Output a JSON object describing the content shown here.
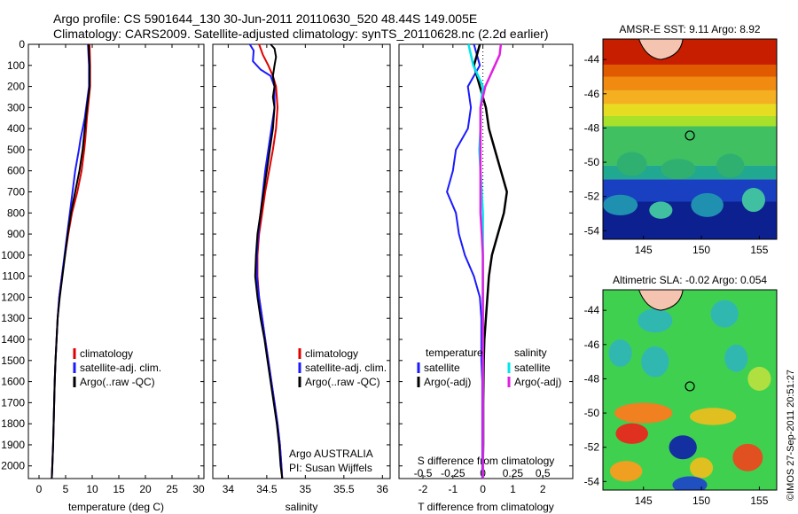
{
  "header": {
    "line1": "Argo profile: CS 5901644_130 30-Jun-2011 20110630_520 48.44S 149.005E",
    "line2": "Climatology: CARS2009. Satellite-adjusted climatology: synTS_20110628.nc (2.2d earlier)"
  },
  "colors": {
    "climatology": "#e00000",
    "satellite": "#1a1aff",
    "argo": "#000000",
    "salinity_sat": "#00e5ee",
    "salinity_argo": "#e020e0"
  },
  "watermark": "©IMOS 27-Sep-2011 20:51:27",
  "chart_data": [
    {
      "type": "line",
      "xlabel": "temperature (deg C)",
      "ylabel": "",
      "xlim": [
        -2,
        31
      ],
      "ylim": [
        2060,
        0
      ],
      "xticks": [
        "0",
        "5",
        "10",
        "15",
        "20",
        "25",
        "30"
      ],
      "yticks": [
        "0",
        "100",
        "200",
        "300",
        "400",
        "500",
        "600",
        "700",
        "800",
        "900",
        "1000",
        "1100",
        "1200",
        "1300",
        "1400",
        "1500",
        "1600",
        "1700",
        "1800",
        "1900",
        "2000"
      ],
      "legend": [
        "climatology",
        "satellite-adj. clim.",
        "Argo(..raw -QC)"
      ],
      "series": [
        {
          "name": "climatology",
          "points": [
            [
              9.5,
              0
            ],
            [
              9.6,
              100
            ],
            [
              9.6,
              200
            ],
            [
              9.0,
              350
            ],
            [
              8.7,
              450
            ],
            [
              8.5,
              500
            ],
            [
              8.0,
              600
            ],
            [
              7.2,
              700
            ],
            [
              6.2,
              800
            ],
            [
              5.5,
              900
            ],
            [
              4.9,
              1000
            ],
            [
              4.3,
              1100
            ],
            [
              3.8,
              1200
            ],
            [
              3.5,
              1300
            ],
            [
              3.3,
              1400
            ],
            [
              3.1,
              1500
            ],
            [
              2.95,
              1600
            ],
            [
              2.85,
              1700
            ],
            [
              2.75,
              1800
            ],
            [
              2.65,
              1900
            ],
            [
              2.5,
              2000
            ],
            [
              2.4,
              2060
            ]
          ]
        },
        {
          "name": "satellite-adj. clim.",
          "points": [
            [
              9.2,
              0
            ],
            [
              9.4,
              100
            ],
            [
              9.4,
              200
            ],
            [
              8.6,
              350
            ],
            [
              7.8,
              450
            ],
            [
              7.5,
              500
            ],
            [
              6.8,
              600
            ],
            [
              6.3,
              700
            ],
            [
              5.8,
              800
            ],
            [
              5.3,
              900
            ],
            [
              4.8,
              1000
            ],
            [
              4.3,
              1100
            ],
            [
              3.8,
              1200
            ],
            [
              3.5,
              1300
            ],
            [
              3.3,
              1400
            ],
            [
              3.1,
              1500
            ],
            [
              2.95,
              1600
            ],
            [
              2.85,
              1700
            ],
            [
              2.75,
              1800
            ],
            [
              2.65,
              1900
            ],
            [
              2.5,
              2000
            ],
            [
              2.4,
              2060
            ]
          ]
        },
        {
          "name": "Argo(..raw -QC)",
          "points": [
            [
              9.3,
              0
            ],
            [
              9.5,
              100
            ],
            [
              9.5,
              200
            ],
            [
              9.0,
              300
            ],
            [
              8.6,
              400
            ],
            [
              8.2,
              500
            ],
            [
              7.6,
              600
            ],
            [
              6.8,
              700
            ],
            [
              6.0,
              800
            ],
            [
              5.4,
              900
            ],
            [
              4.9,
              1000
            ],
            [
              4.4,
              1100
            ],
            [
              3.9,
              1200
            ],
            [
              3.5,
              1300
            ],
            [
              3.3,
              1400
            ],
            [
              3.1,
              1500
            ],
            [
              2.95,
              1600
            ],
            [
              2.85,
              1700
            ],
            [
              2.75,
              1800
            ],
            [
              2.65,
              1900
            ],
            [
              2.5,
              2000
            ],
            [
              2.4,
              2060
            ]
          ]
        }
      ]
    },
    {
      "type": "line",
      "xlabel": "salinity",
      "xlim": [
        33.8,
        36.1
      ],
      "ylim": [
        2060,
        0
      ],
      "xticks": [
        "34",
        "34.5",
        "35",
        "35.5",
        "36"
      ],
      "legend": [
        "climatology",
        "satellite-adj. clim.",
        "Argo(..raw -QC)"
      ],
      "annotation": [
        "Argo AUSTRALIA",
        "PI: Susan Wijffels"
      ],
      "series": [
        {
          "name": "climatology",
          "points": [
            [
              34.4,
              0
            ],
            [
              34.45,
              50
            ],
            [
              34.52,
              100
            ],
            [
              34.58,
              150
            ],
            [
              34.62,
              200
            ],
            [
              34.64,
              300
            ],
            [
              34.62,
              400
            ],
            [
              34.58,
              500
            ],
            [
              34.53,
              600
            ],
            [
              34.48,
              700
            ],
            [
              34.44,
              800
            ],
            [
              34.4,
              900
            ],
            [
              34.38,
              1000
            ],
            [
              34.38,
              1100
            ],
            [
              34.4,
              1200
            ],
            [
              34.44,
              1300
            ],
            [
              34.48,
              1400
            ],
            [
              34.52,
              1500
            ],
            [
              34.56,
              1600
            ],
            [
              34.6,
              1700
            ],
            [
              34.64,
              1800
            ],
            [
              34.67,
              1900
            ],
            [
              34.69,
              2000
            ],
            [
              34.7,
              2060
            ]
          ]
        },
        {
          "name": "satellite-adj. clim.",
          "points": [
            [
              34.28,
              0
            ],
            [
              34.33,
              30
            ],
            [
              34.32,
              80
            ],
            [
              34.42,
              120
            ],
            [
              34.55,
              150
            ],
            [
              34.6,
              200
            ],
            [
              34.6,
              300
            ],
            [
              34.56,
              400
            ],
            [
              34.52,
              500
            ],
            [
              34.48,
              600
            ],
            [
              34.45,
              700
            ],
            [
              34.42,
              800
            ],
            [
              34.39,
              900
            ],
            [
              34.37,
              1000
            ],
            [
              34.37,
              1100
            ],
            [
              34.4,
              1200
            ],
            [
              34.44,
              1300
            ],
            [
              34.48,
              1400
            ],
            [
              34.52,
              1500
            ],
            [
              34.56,
              1600
            ],
            [
              34.6,
              1700
            ],
            [
              34.64,
              1800
            ],
            [
              34.67,
              1900
            ],
            [
              34.69,
              2000
            ],
            [
              34.7,
              2060
            ]
          ]
        },
        {
          "name": "Argo(..raw -QC)",
          "points": [
            [
              34.55,
              0
            ],
            [
              34.6,
              20
            ],
            [
              34.62,
              60
            ],
            [
              34.6,
              100
            ],
            [
              34.58,
              150
            ],
            [
              34.6,
              200
            ],
            [
              34.58,
              250
            ],
            [
              34.6,
              300
            ],
            [
              34.58,
              400
            ],
            [
              34.54,
              500
            ],
            [
              34.5,
              600
            ],
            [
              34.46,
              700
            ],
            [
              34.42,
              800
            ],
            [
              34.38,
              900
            ],
            [
              34.36,
              1000
            ],
            [
              34.35,
              1100
            ],
            [
              34.38,
              1200
            ],
            [
              34.42,
              1300
            ],
            [
              34.47,
              1400
            ],
            [
              34.51,
              1500
            ],
            [
              34.55,
              1600
            ],
            [
              34.59,
              1700
            ],
            [
              34.63,
              1800
            ],
            [
              34.66,
              1900
            ],
            [
              34.68,
              2000
            ],
            [
              34.7,
              2060
            ]
          ]
        }
      ]
    },
    {
      "type": "line",
      "xlabel": "T difference from climatology",
      "top_label": "S difference from climatology",
      "xlim_T": [
        -2.8,
        3.0
      ],
      "xlim_S": [
        -0.7,
        0.75
      ],
      "ylim": [
        2060,
        0
      ],
      "xticks_T": [
        "-2",
        "-1",
        "0",
        "1",
        "2"
      ],
      "xticks_S": [
        "-0.5",
        "-0.25",
        "0",
        "0.25",
        "0.5"
      ],
      "legend_temperature": {
        "header": "temperature",
        "items": [
          "satellite",
          "Argo(-adj)"
        ]
      },
      "legend_salinity": {
        "header": "salinity",
        "items": [
          "satellite",
          "Argo(-adj)"
        ]
      },
      "series": [
        {
          "name": "T satellite",
          "points": [
            [
              -0.3,
              0
            ],
            [
              -0.1,
              100
            ],
            [
              -0.5,
              200
            ],
            [
              -0.4,
              300
            ],
            [
              -0.5,
              400
            ],
            [
              -0.9,
              500
            ],
            [
              -1.0,
              600
            ],
            [
              -1.2,
              700
            ],
            [
              -0.9,
              800
            ],
            [
              -0.8,
              900
            ],
            [
              -0.6,
              1000
            ],
            [
              -0.3,
              1100
            ],
            [
              -0.1,
              1200
            ],
            [
              -0.05,
              1300
            ],
            [
              -0.05,
              1400
            ],
            [
              -0.05,
              1500
            ],
            [
              -0.02,
              1600
            ],
            [
              -0.02,
              1700
            ],
            [
              -0.02,
              1800
            ],
            [
              -0.02,
              1900
            ],
            [
              -0.02,
              2000
            ],
            [
              -0.02,
              2060
            ]
          ]
        },
        {
          "name": "T Argo(-adj)",
          "points": [
            [
              -0.1,
              0
            ],
            [
              -0.2,
              50
            ],
            [
              -0.3,
              100
            ],
            [
              -0.1,
              200
            ],
            [
              0.1,
              300
            ],
            [
              0.2,
              400
            ],
            [
              0.4,
              500
            ],
            [
              0.6,
              600
            ],
            [
              0.8,
              700
            ],
            [
              0.7,
              800
            ],
            [
              0.5,
              900
            ],
            [
              0.3,
              1000
            ],
            [
              0.2,
              1100
            ],
            [
              0.15,
              1200
            ],
            [
              0.1,
              1300
            ],
            [
              0.05,
              1400
            ],
            [
              0.03,
              1500
            ],
            [
              0.02,
              1600
            ],
            [
              0.01,
              1700
            ],
            [
              0.01,
              1800
            ],
            [
              0.01,
              1900
            ],
            [
              0.0,
              2000
            ],
            [
              0.0,
              2060
            ]
          ]
        },
        {
          "name": "S satellite",
          "points": [
            [
              -0.12,
              0
            ],
            [
              -0.08,
              100
            ],
            [
              0.0,
              200
            ],
            [
              -0.02,
              300
            ],
            [
              -0.02,
              400
            ],
            [
              -0.03,
              500
            ],
            [
              -0.02,
              600
            ],
            [
              -0.01,
              700
            ],
            [
              0.0,
              800
            ],
            [
              0.0,
              900
            ],
            [
              0.0,
              1000
            ],
            [
              0.0,
              1100
            ],
            [
              0.0,
              1200
            ],
            [
              0.0,
              1300
            ],
            [
              0.0,
              1400
            ],
            [
              0.0,
              1500
            ],
            [
              0.0,
              1600
            ],
            [
              0.0,
              1700
            ],
            [
              0.0,
              1800
            ],
            [
              0.0,
              1900
            ],
            [
              0.0,
              2000
            ],
            [
              0.0,
              2060
            ]
          ]
        },
        {
          "name": "S Argo(-adj)",
          "points": [
            [
              0.15,
              0
            ],
            [
              0.14,
              50
            ],
            [
              0.1,
              100
            ],
            [
              0.02,
              200
            ],
            [
              -0.02,
              300
            ],
            [
              -0.02,
              400
            ],
            [
              -0.02,
              500
            ],
            [
              -0.02,
              600
            ],
            [
              -0.02,
              700
            ],
            [
              -0.02,
              800
            ],
            [
              -0.01,
              900
            ],
            [
              0.0,
              1000
            ],
            [
              0.0,
              1100
            ],
            [
              0.0,
              1200
            ],
            [
              0.0,
              1300
            ],
            [
              0.0,
              1400
            ],
            [
              0.0,
              1500
            ],
            [
              0.0,
              1600
            ],
            [
              0.0,
              1700
            ],
            [
              0.0,
              1800
            ],
            [
              0.0,
              1900
            ],
            [
              0.0,
              2000
            ],
            [
              0.0,
              2060
            ]
          ]
        }
      ]
    },
    {
      "type": "heatmap",
      "title": "AMSR-E SST: 9.11 Argo: 8.92",
      "xticks": [
        "145",
        "150",
        "155"
      ],
      "yticks": [
        "-44",
        "-46",
        "-48",
        "-50",
        "-52",
        "-54"
      ],
      "xlim": [
        141.5,
        156.5
      ],
      "ylim": [
        -54.5,
        -42.8
      ],
      "argo_position": [
        149.005,
        -48.44
      ]
    },
    {
      "type": "heatmap",
      "title": "Altimetric SLA: -0.02 Argo: 0.054",
      "xticks": [
        "145",
        "150",
        "155"
      ],
      "yticks": [
        "-44",
        "-46",
        "-48",
        "-50",
        "-52",
        "-54"
      ],
      "xlim": [
        141.5,
        156.5
      ],
      "ylim": [
        -54.5,
        -42.8
      ],
      "argo_position": [
        149.005,
        -48.44
      ]
    }
  ]
}
